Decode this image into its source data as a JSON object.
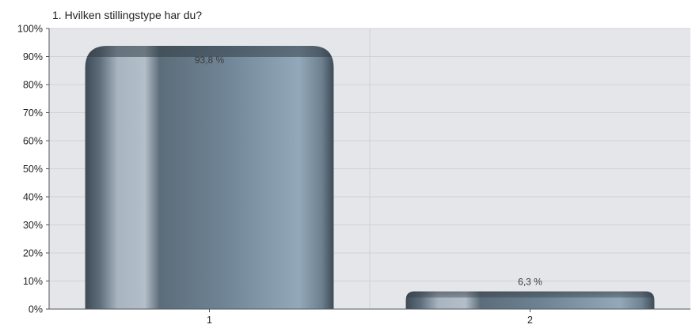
{
  "chart_data": {
    "type": "bar",
    "title": "1. Hvilken stillingstype har du?",
    "categories": [
      "1",
      "2"
    ],
    "values": [
      93.8,
      6.3
    ],
    "data_labels": [
      "93,8 %",
      "6,3 %"
    ],
    "ylim": [
      0,
      100
    ],
    "yticks": [
      0,
      10,
      20,
      30,
      40,
      50,
      60,
      70,
      80,
      90,
      100
    ],
    "ytick_labels": [
      "0%",
      "10%",
      "20%",
      "30%",
      "40%",
      "50%",
      "60%",
      "70%",
      "80%",
      "90%",
      "100%"
    ],
    "xlabel": "",
    "ylabel": "",
    "grid": true,
    "legend": "none"
  },
  "colors": {
    "plot_background": "#e4e6e9",
    "gridline": "#cfd3d8",
    "axis": "#555555",
    "bar_dark": "#3e4b56",
    "bar_mid": "#66798a",
    "bar_light": "#93a9ba",
    "text": "#222222",
    "data_label_text": "#3a3a3a"
  }
}
